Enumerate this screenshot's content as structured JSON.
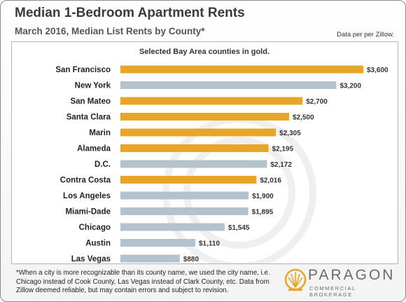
{
  "header": {
    "title": "Median 1-Bedroom Apartment Rents",
    "subtitle": "March 2016, Median List Rents by County*",
    "source": "Data per per Zillow."
  },
  "chart_data": {
    "type": "bar",
    "orientation": "horizontal",
    "title": "Median 1-Bedroom Apartment Rents",
    "subtitle": "March 2016, Median List Rents by County*",
    "annotation": "Selected Bay Area counties in gold.",
    "categories": [
      "San Francisco",
      "New York",
      "San Mateo",
      "Santa Clara",
      "Marin",
      "Alameda",
      "D.C.",
      "Contra Costa",
      "Los Angeles",
      "Miami-Dade",
      "Chicago",
      "Austin",
      "Las Vegas"
    ],
    "values": [
      3600,
      3200,
      2700,
      2500,
      2305,
      2195,
      2172,
      2016,
      1900,
      1895,
      1545,
      1110,
      880
    ],
    "value_labels": [
      "$3,600",
      "$3,200",
      "$2,700",
      "$2,500",
      "$2,305",
      "$2,195",
      "$2,172",
      "$2,016",
      "$1,900",
      "$1,895",
      "$1,545",
      "$1,110",
      "$880"
    ],
    "bay_area": [
      true,
      false,
      true,
      true,
      true,
      true,
      false,
      true,
      false,
      false,
      false,
      false,
      false
    ],
    "colors": {
      "bay_area": "#e8a628",
      "other": "#b3c2cc"
    },
    "xlim": [
      0,
      3600
    ],
    "grid": false
  },
  "footnote": "*When a city is more recognizable than its county name, we used the city name, i.e. Chicago instead of Cook County, Las Vegas instead of Clark County, etc. Data from Zillow deemed reliable, but may contain errors and subject to revision.",
  "logo": {
    "name": "PARAGON",
    "tagline": "COMMERCIAL BROKERAGE",
    "icon": "paragon-sunburst-icon"
  }
}
